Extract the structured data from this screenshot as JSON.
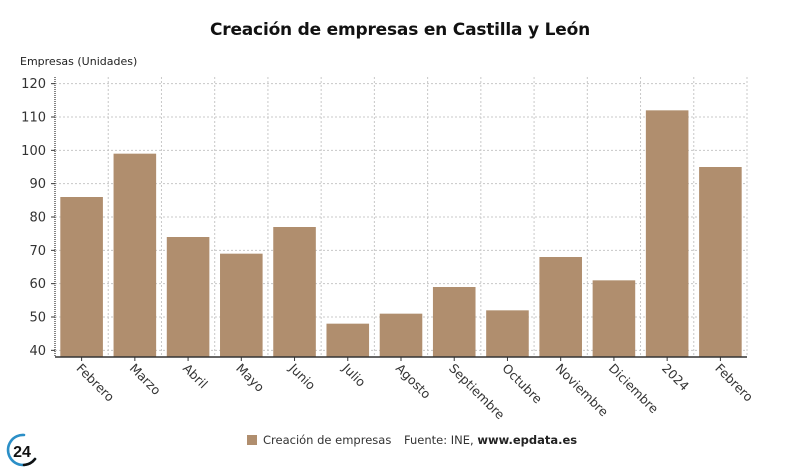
{
  "chart_data": {
    "type": "bar",
    "title": "Creación de empresas en Castilla y León",
    "ylabel": "Empresas (Unidades)",
    "xlabel": "",
    "categories": [
      "Febrero",
      "Marzo",
      "Abril",
      "Mayo",
      "Junio",
      "Julio",
      "Agosto",
      "Septiembre",
      "Octubre",
      "Noviembre",
      "Diciembre",
      "2024",
      "Febrero"
    ],
    "series": [
      {
        "name": "Creación de empresas",
        "color": "#b08e6e",
        "values": [
          86,
          99,
          74,
          69,
          77,
          48,
          51,
          59,
          52,
          68,
          61,
          112,
          95
        ]
      }
    ],
    "ylim": [
      38,
      122
    ],
    "yticks": [
      40,
      50,
      60,
      70,
      80,
      90,
      100,
      110,
      120
    ],
    "grid": true,
    "legend": "bottom-center"
  },
  "footer": {
    "legend_label": "Creación de empresas",
    "source_prefix": "Fuente: INE, ",
    "source_site": "www.epdata.es",
    "logo_text": "24"
  }
}
